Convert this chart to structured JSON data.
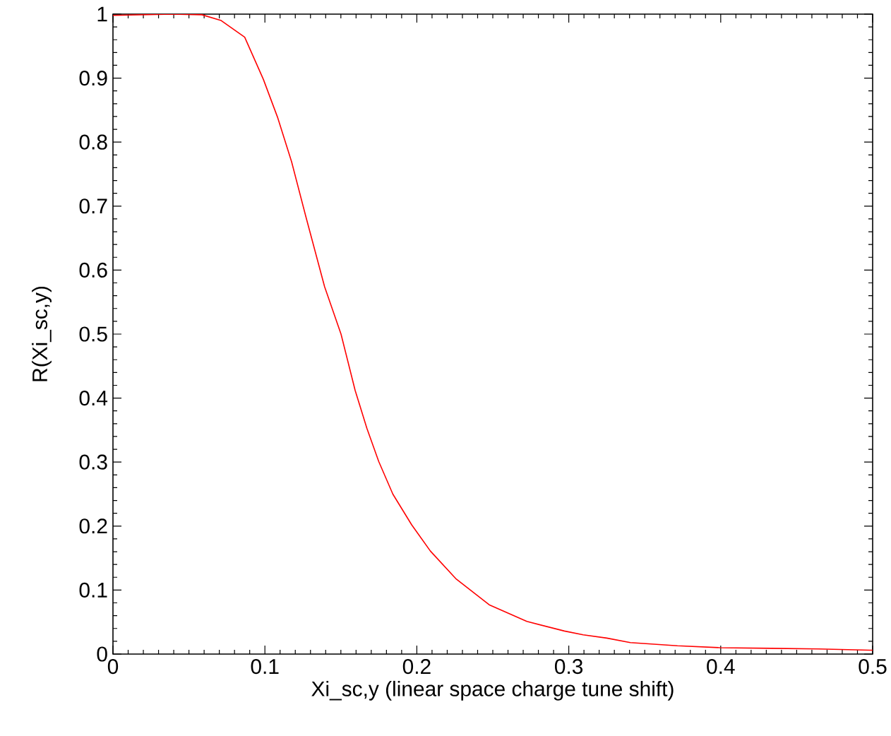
{
  "chart_data": {
    "type": "line",
    "xlabel": "Xi_sc,y (linear space charge tune shift)",
    "ylabel": "R(Xi_sc,y)",
    "xlim": [
      0,
      0.5
    ],
    "ylim": [
      0,
      1
    ],
    "xticks": [
      0,
      0.1,
      0.2,
      0.3,
      0.4,
      0.5
    ],
    "yticks": [
      0,
      0.1,
      0.2,
      0.3,
      0.4,
      0.5,
      0.6,
      0.7,
      0.8,
      0.9,
      1
    ],
    "grid": false,
    "marker": "none",
    "line_style": "solid",
    "series": [
      {
        "color": "#ff0000",
        "x": [
          0,
          0.02,
          0.04,
          0.0585,
          0.0712,
          0.0867,
          0.099,
          0.1083,
          0.1176,
          0.1269,
          0.1393,
          0.1501,
          0.1594,
          0.1671,
          0.1749,
          0.1842,
          0.1966,
          0.2089,
          0.226,
          0.2476,
          0.2724,
          0.2971,
          0.3095,
          0.325,
          0.3405,
          0.3715,
          0.3994,
          0.4334,
          0.4644,
          0.498,
          0.5
        ],
        "values": [
          0.998,
          0.999,
          1,
          0.999,
          0.99,
          0.964,
          0.898,
          0.839,
          0.769,
          0.684,
          0.574,
          0.5,
          0.412,
          0.353,
          0.301,
          0.25,
          0.202,
          0.161,
          0.117,
          0.077,
          0.051,
          0.036,
          0.03,
          0.025,
          0.018,
          0.013,
          0.01,
          0.009,
          0.008,
          0.006,
          0.006
        ]
      }
    ]
  }
}
